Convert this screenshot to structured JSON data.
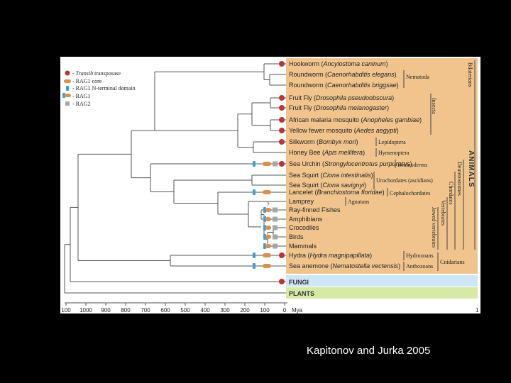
{
  "colors": {
    "background": "#000000",
    "animals_band": "#f0c48c",
    "fungi_band": "#cfe6f7",
    "plants_band": "#d6eaa5",
    "transposase": "#b5363b",
    "rag1_core": "#d9904a",
    "rag1_nterm": "#3ea0d8",
    "rag2": "#a6a6a6"
  },
  "legend": [
    {
      "marker": "transposase",
      "label_pre": "- ",
      "label_em": "Transib",
      "label_post": " transposase"
    },
    {
      "marker": "rag1_core",
      "label_pre": "- RAG1 core",
      "label_em": "",
      "label_post": ""
    },
    {
      "marker": "rag1_nterm",
      "label_pre": "- RAG1 N-terminal domain",
      "label_em": "",
      "label_post": ""
    },
    {
      "marker": "rag1",
      "label_pre": "- RAG1",
      "label_em": "",
      "label_post": ""
    },
    {
      "marker": "rag2",
      "label_pre": "- RAG2",
      "label_em": "",
      "label_post": ""
    }
  ],
  "taxa": [
    {
      "common": "Hookworm",
      "species": "Ancylostoma caninum",
      "markers": [
        "transposase"
      ]
    },
    {
      "common": "Roundworm",
      "species": "Caenorhabditis elegans",
      "markers": []
    },
    {
      "common": "Roundworm",
      "species": "Caenorhabditis briggsae",
      "markers": []
    },
    {
      "common": "Fruit Fly",
      "species": "Drosophila pseudoobscura",
      "markers": [
        "transposase"
      ]
    },
    {
      "common": "Fruit Fly",
      "species": "Drosophila melanogaster",
      "markers": [
        "transposase"
      ]
    },
    {
      "common": "African malaria mosquito",
      "species": "Anopheles gambiae",
      "markers": [
        "transposase"
      ]
    },
    {
      "common": "Yellow fewer mosquito",
      "species": "Aedes aegypti",
      "markers": [
        "transposase"
      ]
    },
    {
      "common": "Silkworm",
      "species": "Bombyx mori",
      "markers": [
        "transposase"
      ]
    },
    {
      "common": "Honey Bee",
      "species": "Apis mellifera",
      "markers": []
    },
    {
      "common": "Sea Urchin",
      "species": "Strongylocentrotus purpuratus",
      "markers": [
        "rag1_nterm",
        "rag1_core",
        "rag2",
        "transposase"
      ]
    },
    {
      "common": "Sea Squirt",
      "species": "Ciona intestinalis",
      "markers": []
    },
    {
      "common": "Sea Squirt",
      "species": "Ciona savignyi",
      "markers": []
    },
    {
      "common": "Lancelet",
      "species": "Branchiostoma floridae",
      "markers": [
        "rag1_nterm",
        "rag1_core"
      ]
    },
    {
      "common": "Lamprey",
      "species": "",
      "markers": []
    },
    {
      "common": "Ray-finned Fishes",
      "species": "",
      "markers": [
        "rag1",
        "rag2"
      ]
    },
    {
      "common": "Amphibians",
      "species": "",
      "markers": [
        "rag1",
        "rag2"
      ]
    },
    {
      "common": "Crocodiles",
      "species": "",
      "markers": [
        "rag1",
        "rag2"
      ]
    },
    {
      "common": "Birds",
      "species": "",
      "markers": [
        "rag1",
        "rag2"
      ]
    },
    {
      "common": "Mammals",
      "species": "",
      "markers": [
        "rag1",
        "rag2"
      ]
    },
    {
      "common": "Hydra",
      "species": "Hydra magnipapillata",
      "markers": [
        "rag1_nterm",
        "rag1_core",
        "transposase"
      ]
    },
    {
      "common": "Sea anemone",
      "species": "Nematostella vectensis",
      "markers": [
        "rag1_nterm",
        "rag1_core"
      ]
    }
  ],
  "clades": {
    "nematoda": "Nematoda",
    "insecta": "Insecta",
    "lepidoptera": "Lepidoptera",
    "hymenoptera": "Hymenoptera",
    "echinoderms": "Echinoderms",
    "urochordates": "Urochordates (ascidians)",
    "cephalochordates": "Cephalochordates",
    "agnatans": "Agnatans",
    "jawed_vertebrates": "Jawed vertebrates",
    "vertebrates": "Vertebrates",
    "chordates": "Chordates",
    "deuterostomes": "Deuterostomes",
    "bilaterians": "Bilaterians",
    "hydrozoans": "Hydrozoans",
    "anthozoans": "Anthozoans",
    "cnidarians": "Cnidarians",
    "animals": "ANIMALS"
  },
  "question_mark": "?",
  "fungi": "FUNGI",
  "plants": "PLANTS",
  "axis": {
    "ticks": [
      "100",
      "1000",
      "900",
      "800",
      "700",
      "600",
      "500",
      "400",
      "300",
      "200",
      "100",
      "0"
    ],
    "unit": "Mya",
    "right_mark": "1"
  },
  "caption": "Kapitonov and Jurka 2005"
}
